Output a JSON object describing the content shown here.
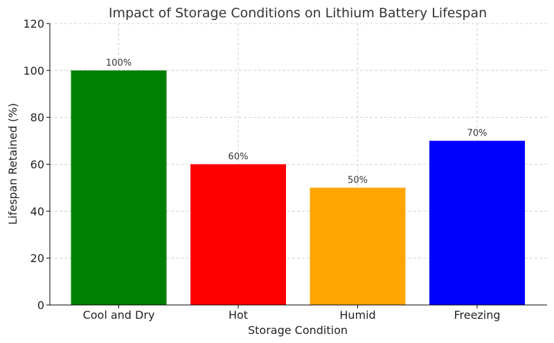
{
  "chart_data": {
    "type": "bar",
    "title": "Impact of Storage Conditions on Lithium Battery Lifespan",
    "xlabel": "Storage Condition",
    "ylabel": "Lifespan Retained (%)",
    "categories": [
      "Cool and Dry",
      "Hot",
      "Humid",
      "Freezing"
    ],
    "values": [
      100,
      60,
      50,
      70
    ],
    "value_labels": [
      "100%",
      "60%",
      "50%",
      "70%"
    ],
    "colors": [
      "#008000",
      "#ff0000",
      "#ffa500",
      "#0000ff"
    ],
    "ylim": [
      0,
      120
    ],
    "yticks": [
      0,
      20,
      40,
      60,
      80,
      100,
      120
    ],
    "ytick_labels": [
      "0",
      "20",
      "40",
      "60",
      "80",
      "100",
      "120"
    ],
    "grid": true
  }
}
